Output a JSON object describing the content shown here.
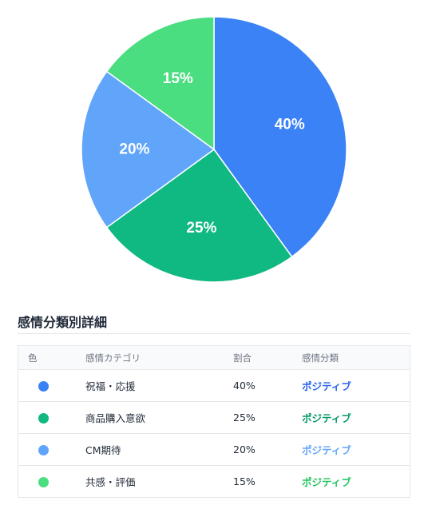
{
  "chart_data": {
    "type": "pie",
    "slices": [
      {
        "label": "祝福・応援",
        "value": 40,
        "display": "40%",
        "color": "#3b82f6"
      },
      {
        "label": "商品購入意欲",
        "value": 25,
        "display": "25%",
        "color": "#10b981"
      },
      {
        "label": "CM期待",
        "value": 20,
        "display": "20%",
        "color": "#60a5fa"
      },
      {
        "label": "共感・評価",
        "value": 15,
        "display": "15%",
        "color": "#4ade80"
      }
    ],
    "start_angle_deg": 0,
    "direction": "clockwise"
  },
  "section": {
    "title": "感情分類別詳細"
  },
  "table": {
    "headers": {
      "color": "色",
      "category": "感情カテゴリ",
      "ratio": "割合",
      "classification": "感情分類"
    },
    "rows": [
      {
        "category": "祝福・応援",
        "ratio": "40%",
        "classification": "ポジティブ",
        "dot_color": "#3b82f6",
        "class_color": "#2563eb"
      },
      {
        "category": "商品購入意欲",
        "ratio": "25%",
        "classification": "ポジティブ",
        "dot_color": "#10b981",
        "class_color": "#059669"
      },
      {
        "category": "CM期待",
        "ratio": "20%",
        "classification": "ポジティブ",
        "dot_color": "#60a5fa",
        "class_color": "#60a5fa"
      },
      {
        "category": "共感・評価",
        "ratio": "15%",
        "classification": "ポジティブ",
        "dot_color": "#4ade80",
        "class_color": "#22c55e"
      }
    ]
  }
}
